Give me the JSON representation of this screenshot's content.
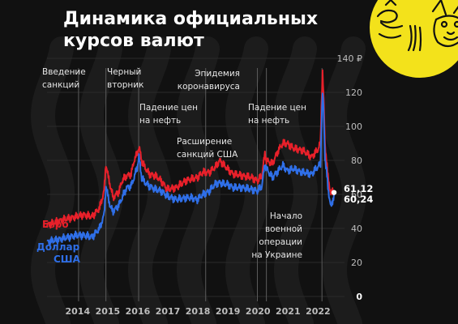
{
  "chart_title": {
    "line1": "Динамика официальных",
    "line2": "курсов валют"
  },
  "colors": {
    "background": "#111111",
    "euro": "#e8202a",
    "usd": "#2f6fe8",
    "logo": "#f3e21b",
    "axis_text": "#bdbdbd"
  },
  "chart_data": {
    "type": "line",
    "x_ticks": [
      "2014",
      "2015",
      "2016",
      "2017",
      "2018",
      "2019",
      "2020",
      "2021",
      "2022"
    ],
    "y_ticks": [
      "0",
      "20",
      "40",
      "60",
      "80",
      "100",
      "120",
      "140 ₽"
    ],
    "ylim": [
      0,
      140
    ],
    "xlim": [
      2013.0,
      2022.9
    ],
    "grid": true,
    "series": [
      {
        "name": "Евро",
        "color": "#e8202a",
        "x": [
          2013.0,
          2013.5,
          2014.0,
          2014.2,
          2014.5,
          2014.75,
          2014.9,
          2014.96,
          2015.04,
          2015.12,
          2015.2,
          2015.3,
          2015.4,
          2015.5,
          2015.65,
          2015.8,
          2015.9,
          2016.0,
          2016.06,
          2016.15,
          2016.25,
          2016.4,
          2016.6,
          2016.8,
          2017.0,
          2017.3,
          2017.6,
          2017.8,
          2018.0,
          2018.2,
          2018.4,
          2018.6,
          2018.75,
          2018.9,
          2019.0,
          2019.2,
          2019.5,
          2019.8,
          2020.0,
          2020.15,
          2020.25,
          2020.3,
          2020.5,
          2020.7,
          2020.85,
          2021.0,
          2021.2,
          2021.5,
          2021.8,
          2022.0,
          2022.1,
          2022.13,
          2022.17,
          2022.2,
          2022.25,
          2022.3,
          2022.35,
          2022.4,
          2022.45,
          2022.5,
          2022.55
        ],
        "y": [
          42,
          45,
          47,
          48,
          47,
          52,
          62,
          78,
          70,
          64,
          58,
          60,
          62,
          68,
          71,
          72,
          80,
          84,
          88,
          80,
          76,
          72,
          71,
          68,
          63,
          64,
          68,
          69,
          70,
          73,
          73,
          76,
          80,
          77,
          75,
          72,
          71,
          70,
          68,
          71,
          84,
          80,
          78,
          86,
          90,
          90,
          87,
          86,
          82,
          86,
          90,
          112,
          132,
          118,
          90,
          80,
          70,
          65,
          60,
          62,
          61.12
        ]
      },
      {
        "name": "Доллар США",
        "color": "#2f6fe8",
        "x": [
          2013.0,
          2013.5,
          2014.0,
          2014.2,
          2014.5,
          2014.75,
          2014.9,
          2014.96,
          2015.04,
          2015.12,
          2015.2,
          2015.3,
          2015.4,
          2015.5,
          2015.65,
          2015.8,
          2015.9,
          2016.0,
          2016.06,
          2016.15,
          2016.25,
          2016.4,
          2016.6,
          2016.8,
          2017.0,
          2017.3,
          2017.6,
          2017.8,
          2018.0,
          2018.2,
          2018.4,
          2018.6,
          2018.75,
          2018.9,
          2019.0,
          2019.2,
          2019.5,
          2019.8,
          2020.0,
          2020.15,
          2020.25,
          2020.3,
          2020.5,
          2020.7,
          2020.85,
          2021.0,
          2021.2,
          2021.5,
          2021.8,
          2022.0,
          2022.1,
          2022.13,
          2022.17,
          2022.2,
          2022.25,
          2022.3,
          2022.35,
          2022.4,
          2022.45,
          2022.5,
          2022.55
        ],
        "y": [
          32,
          34,
          36,
          36,
          35,
          40,
          48,
          65,
          58,
          52,
          50,
          52,
          54,
          58,
          64,
          65,
          70,
          76,
          82,
          70,
          67,
          65,
          63,
          62,
          59,
          57,
          58,
          58,
          57,
          60,
          62,
          66,
          67,
          66,
          66,
          64,
          64,
          63,
          62,
          65,
          78,
          75,
          70,
          74,
          77,
          74,
          75,
          73,
          72,
          76,
          78,
          100,
          120,
          110,
          82,
          74,
          64,
          58,
          52,
          56,
          60.24
        ]
      }
    ],
    "end_labels": [
      "61,12",
      "60,24"
    ],
    "events": [
      {
        "label_lines": [
          "Введение",
          "санкций"
        ],
        "x": 2014.05
      },
      {
        "label_lines": [
          "Черный",
          "вторник"
        ],
        "x": 2014.96
      },
      {
        "label_lines": [
          "Падение цен",
          "на нефть"
        ],
        "x": 2016.05
      },
      {
        "label_lines": [
          "Расширение",
          "санкций США"
        ],
        "x": 2018.28
      },
      {
        "label_lines": [
          "Эпидемия",
          "коронавируса"
        ],
        "x": 2020.0
      },
      {
        "label_lines": [
          "Падение цен",
          "на нефть"
        ],
        "x": 2020.3
      },
      {
        "label_lines": [
          "Начало",
          "военной",
          "операции",
          "на Украине"
        ],
        "x": 2022.15
      }
    ],
    "legend": [
      {
        "label": "Евро",
        "color": "#e8202a"
      },
      {
        "label": "Доллар США",
        "color": "#2f6fe8"
      }
    ]
  }
}
